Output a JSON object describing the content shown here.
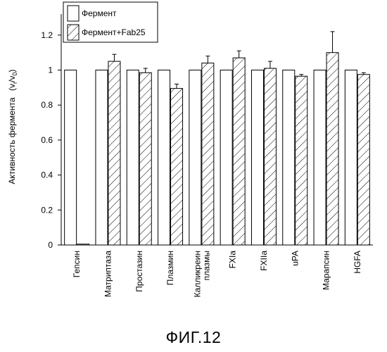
{
  "chart_data": {
    "type": "bar",
    "ylabel": "Активность фермента",
    "ylabel_ratio": {
      "main": "(v",
      "sub1": "i",
      "mid": "/v",
      "sub2": "0",
      "end": ")"
    },
    "ylim": [
      0,
      1.3
    ],
    "yticks": [
      "0",
      "0.2",
      "0.4",
      "0.6",
      "0.8",
      "1",
      "1.2"
    ],
    "grid": false,
    "legend_position": "top-left",
    "categories": [
      "Гепсин",
      "Матриптаза",
      "Простазин",
      "Плазмин",
      "Калликреин плазмы",
      "FXIa",
      "FXIIa",
      "uPA",
      "Марапсин",
      "HGFA"
    ],
    "category_lines": [
      [
        "Гепсин"
      ],
      [
        "Матриптаза"
      ],
      [
        "Простазин"
      ],
      [
        "Плазмин"
      ],
      [
        "Калликреин",
        "плазмы"
      ],
      [
        "FXIa"
      ],
      [
        "FXIIa"
      ],
      [
        "uPA"
      ],
      [
        "Марапсин"
      ],
      [
        "HGFA"
      ]
    ],
    "series": [
      {
        "name": "Фермент",
        "fill": "plain",
        "values": [
          1,
          1,
          1,
          1,
          1,
          1,
          1,
          1,
          1,
          1
        ],
        "errors": [
          0,
          0,
          0,
          0,
          0,
          0,
          0,
          0,
          0,
          0
        ]
      },
      {
        "name": "Фермент+Fab25",
        "fill": "hatched",
        "values": [
          0.005,
          1.05,
          0.985,
          0.895,
          1.04,
          1.07,
          1.01,
          0.965,
          1.1,
          0.975
        ],
        "errors": [
          0,
          0.04,
          0.025,
          0.025,
          0.04,
          0.04,
          0.04,
          0.01,
          0.12,
          0.01
        ]
      }
    ]
  },
  "figure": {
    "caption": "ФИГ.12"
  }
}
